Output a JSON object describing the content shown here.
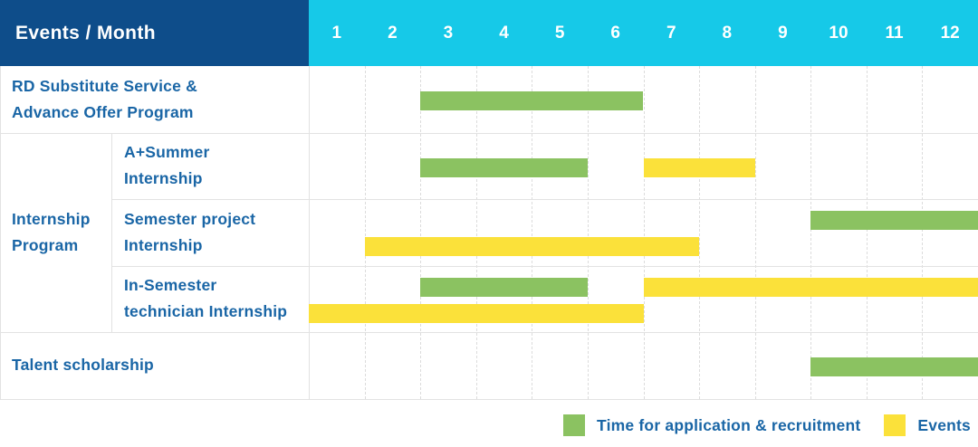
{
  "colors": {
    "header_bg": "#0E4D8A",
    "months_bg": "#16C9E8",
    "recruitment_green": "#8BC261",
    "event_yellow": "#FBE13A",
    "label_text": "#1A66A6",
    "grid_line": "#E2E2E2",
    "month_divider": "#DCDCDC"
  },
  "header": {
    "title": "Events / Month"
  },
  "chart_data": {
    "type": "gantt",
    "title": "Events / Month",
    "x_unit": "month",
    "x_ticks": [
      "1",
      "2",
      "3",
      "4",
      "5",
      "6",
      "7",
      "8",
      "9",
      "10",
      "11",
      "12"
    ],
    "x_range": [
      1,
      12
    ],
    "grid": "dashed-vertical-month-lines",
    "legend_position": "bottom-right",
    "bar_kinds": {
      "recruitment": {
        "label": "Time for application & recruitment",
        "color": "#8BC261"
      },
      "event": {
        "label": "Events",
        "color": "#FBE13A"
      }
    },
    "groups": [
      {
        "label_lines": [],
        "rows": [
          {
            "label_lines": [
              "RD Substitute Service &",
              "Advance Offer Program"
            ],
            "bars": [
              {
                "kind": "recruitment",
                "start_month": 3,
                "end_month": 6,
                "lane": "single"
              }
            ]
          }
        ]
      },
      {
        "label_lines": [
          "Internship",
          "Program"
        ],
        "rows": [
          {
            "label_lines": [
              "A+Summer",
              "Internship"
            ],
            "bars": [
              {
                "kind": "recruitment",
                "start_month": 3,
                "end_month": 5,
                "lane": "single"
              },
              {
                "kind": "event",
                "start_month": 7,
                "end_month": 8,
                "lane": "single"
              }
            ]
          },
          {
            "label_lines": [
              "Semester project",
              "Internship"
            ],
            "bars": [
              {
                "kind": "recruitment",
                "start_month": 10,
                "end_month": 12,
                "lane": "top"
              },
              {
                "kind": "event",
                "start_month": 2,
                "end_month": 7,
                "lane": "bottom"
              }
            ]
          },
          {
            "label_lines": [
              "In-Semester",
              "technician Internship"
            ],
            "bars": [
              {
                "kind": "recruitment",
                "start_month": 3,
                "end_month": 5,
                "lane": "top"
              },
              {
                "kind": "event",
                "start_month": 7,
                "end_month": 12,
                "lane": "top"
              },
              {
                "kind": "event",
                "start_month": 1,
                "end_month": 6,
                "lane": "bottom"
              }
            ]
          }
        ]
      },
      {
        "label_lines": [],
        "rows": [
          {
            "label_lines": [
              "Talent scholarship"
            ],
            "bars": [
              {
                "kind": "recruitment",
                "start_month": 10,
                "end_month": 12,
                "lane": "single"
              }
            ]
          }
        ]
      }
    ],
    "legend": [
      {
        "kind": "recruitment",
        "label": "Time for application & recruitment"
      },
      {
        "kind": "event",
        "label": "Events"
      }
    ]
  }
}
